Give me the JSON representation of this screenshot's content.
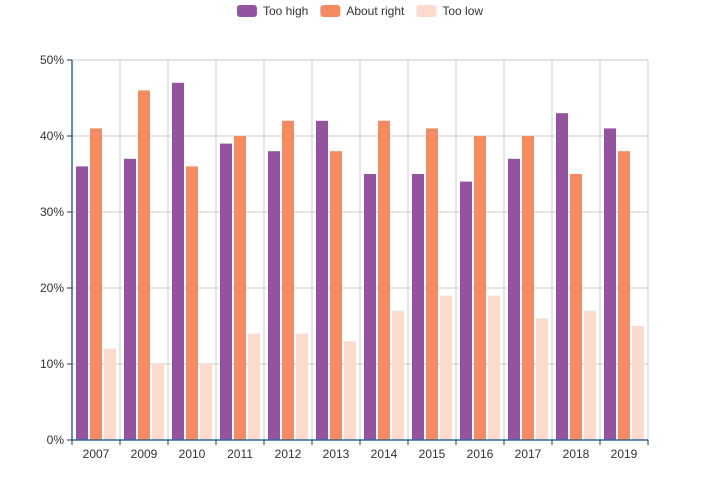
{
  "chart_data": {
    "type": "bar",
    "categories": [
      "2007",
      "2009",
      "2010",
      "2011",
      "2012",
      "2013",
      "2014",
      "2015",
      "2016",
      "2017",
      "2018",
      "2019"
    ],
    "series": [
      {
        "name": "Too high",
        "color": "#93539e",
        "values": [
          36,
          37,
          47,
          39,
          38,
          42,
          35,
          35,
          34,
          37,
          43,
          41
        ]
      },
      {
        "name": "About right",
        "color": "#f48b62",
        "values": [
          41,
          46,
          36,
          40,
          42,
          38,
          42,
          41,
          40,
          40,
          35,
          38
        ]
      },
      {
        "name": "Too low",
        "color": "#fddace",
        "values": [
          12,
          10,
          10,
          14,
          14,
          13,
          17,
          19,
          19,
          16,
          17,
          15
        ]
      }
    ],
    "yticks": [
      "0%",
      "10%",
      "20%",
      "30%",
      "40%",
      "50%"
    ],
    "ylim": [
      0,
      50
    ],
    "legend_position": "top-center",
    "grid": true
  }
}
